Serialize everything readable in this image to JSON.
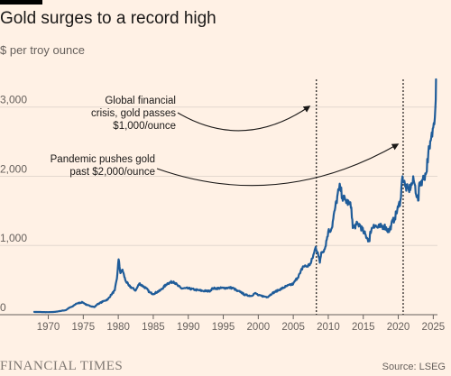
{
  "header": {
    "title": "Gold surges to a record high",
    "subtitle": "$ per troy ounce"
  },
  "footer": {
    "brand": "FINANCIAL TIMES",
    "source": "Source: LSEG"
  },
  "colors": {
    "background": "#FFF1E5",
    "line": "#1F5C99",
    "grid": "#E3D8CE",
    "text": "#66605C"
  },
  "chart_data": {
    "type": "line",
    "title": "Gold surges to a record high",
    "ylabel": "$ per troy ounce",
    "xlim": [
      1968,
      2025.6
    ],
    "ylim": [
      0,
      3400
    ],
    "x_ticks": [
      1970,
      1975,
      1980,
      1985,
      1990,
      1995,
      2000,
      2005,
      2010,
      2015,
      2020,
      2025
    ],
    "x_tick_labels": [
      "1970",
      "1975",
      "1980",
      "1985",
      "1990",
      "1995",
      "2000",
      "2005",
      "2010",
      "2015",
      "2020",
      "2025"
    ],
    "y_ticks": [
      0,
      1000,
      2000,
      3000
    ],
    "y_tick_labels": [
      "0",
      "1,000",
      "2,000",
      "3,000"
    ],
    "grid": true,
    "legend": "none",
    "series": [
      {
        "x": [
          1968,
          1970,
          1971,
          1972,
          1972.5,
          1973,
          1973.5,
          1974,
          1974.9,
          1975.5,
          1976.6,
          1977,
          1978,
          1978.5,
          1979,
          1979.5,
          1979.8,
          1980.05,
          1980.3,
          1980.6,
          1981,
          1981.5,
          1982.5,
          1983,
          1984,
          1984.5,
          1985,
          1986,
          1987,
          1987.9,
          1988.5,
          1989,
          1990,
          1991,
          1992,
          1993,
          1993.5,
          1994,
          1995,
          1996,
          1996.5,
          1997,
          1997.5,
          1998,
          1999,
          1999.5,
          1999.8,
          2000,
          2001,
          2001.3,
          2002,
          2003,
          2004,
          2005,
          2006,
          2006.4,
          2007,
          2007.5,
          2008,
          2008.2,
          2008.5,
          2008.8,
          2009,
          2009.5,
          2010,
          2010.5,
          2011,
          2011.5,
          2011.7,
          2012,
          2012.5,
          2013,
          2013.3,
          2013.5,
          2014,
          2014.5,
          2015,
          2015.9,
          2016,
          2016.5,
          2017,
          2018,
          2018.7,
          2019,
          2019.5,
          2020,
          2020.3,
          2020.6,
          2021,
          2021.5,
          2022,
          2022.2,
          2022.7,
          2022.9,
          2023,
          2023.5,
          2024,
          2024.3,
          2024.5,
          2025,
          2025.3,
          2025.4
        ],
        "y": [
          40,
          36,
          41,
          58,
          65,
          100,
          120,
          160,
          180,
          140,
          110,
          150,
          200,
          220,
          290,
          350,
          520,
          800,
          600,
          650,
          500,
          420,
          350,
          450,
          380,
          320,
          300,
          350,
          450,
          480,
          420,
          380,
          380,
          360,
          345,
          340,
          380,
          380,
          385,
          390,
          380,
          340,
          330,
          290,
          270,
          310,
          300,
          280,
          260,
          255,
          310,
          360,
          410,
          445,
          600,
          700,
          700,
          740,
          900,
          980,
          900,
          750,
          900,
          950,
          1200,
          1250,
          1550,
          1800,
          1850,
          1700,
          1650,
          1600,
          1550,
          1250,
          1300,
          1300,
          1200,
          1060,
          1200,
          1300,
          1260,
          1280,
          1200,
          1300,
          1400,
          1550,
          1650,
          2000,
          1850,
          1800,
          1900,
          1950,
          1700,
          1650,
          1900,
          1950,
          2050,
          2350,
          2400,
          2700,
          3000,
          3400
        ]
      }
    ],
    "annotations": [
      {
        "lines": [
          "Global financial",
          "crisis, gold passes",
          "$1,000/ounce"
        ],
        "x": 2008.3
      },
      {
        "lines": [
          "Pandemic pushes gold",
          "past $2,000/ounce"
        ],
        "x": 2020.7
      }
    ]
  }
}
